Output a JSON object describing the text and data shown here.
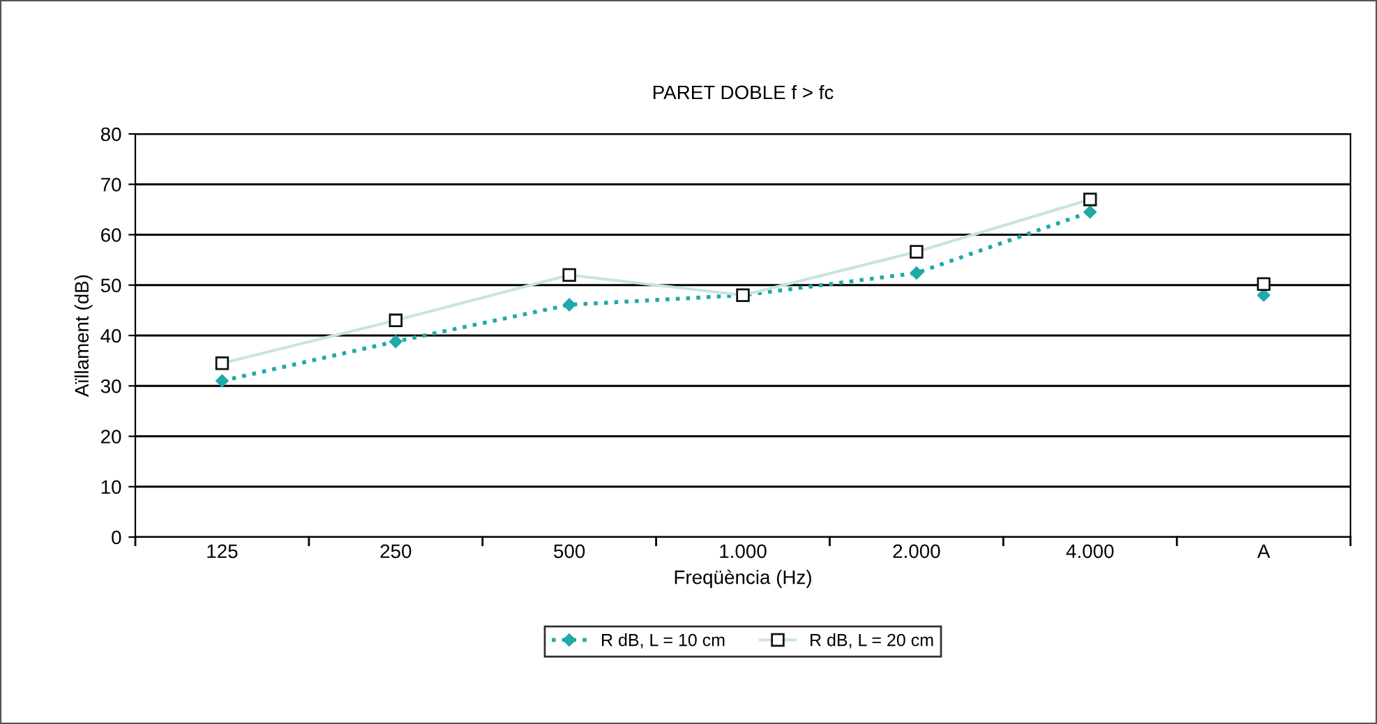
{
  "chart_data": {
    "type": "line",
    "title": "PARET DOBLE f > fc",
    "xlabel": "Freqüència (Hz)",
    "ylabel": "Aïllament (dB)",
    "categories": [
      "125",
      "250",
      "500",
      "1.000",
      "2.000",
      "4.000",
      "A"
    ],
    "series": [
      {
        "name": "R dB, L = 10 cm",
        "color": "#1fa9a9",
        "marker": "diamond",
        "line_style": "dotted",
        "values": [
          31.0,
          38.8,
          46.1,
          48.0,
          52.4,
          64.5,
          null
        ]
      },
      {
        "name": "R dB, L = 20 cm",
        "color": "#c8e4e0",
        "marker": "square",
        "line_style": "solid",
        "values": [
          34.5,
          43.0,
          52.0,
          48.0,
          56.6,
          67.0,
          null
        ]
      },
      {
        "type": "scatter",
        "color": "#1fa9a9",
        "marker": "diamond",
        "values": [
          null,
          null,
          null,
          null,
          null,
          null,
          48.0
        ]
      },
      {
        "type": "scatter",
        "color": "#ffffff",
        "marker": "square",
        "values": [
          null,
          null,
          null,
          null,
          null,
          null,
          50.2
        ]
      }
    ],
    "ylim": [
      0,
      80
    ],
    "yticks": [
      0,
      10,
      20,
      30,
      40,
      50,
      60,
      70,
      80
    ],
    "grid": "y",
    "legend": "bottom"
  }
}
